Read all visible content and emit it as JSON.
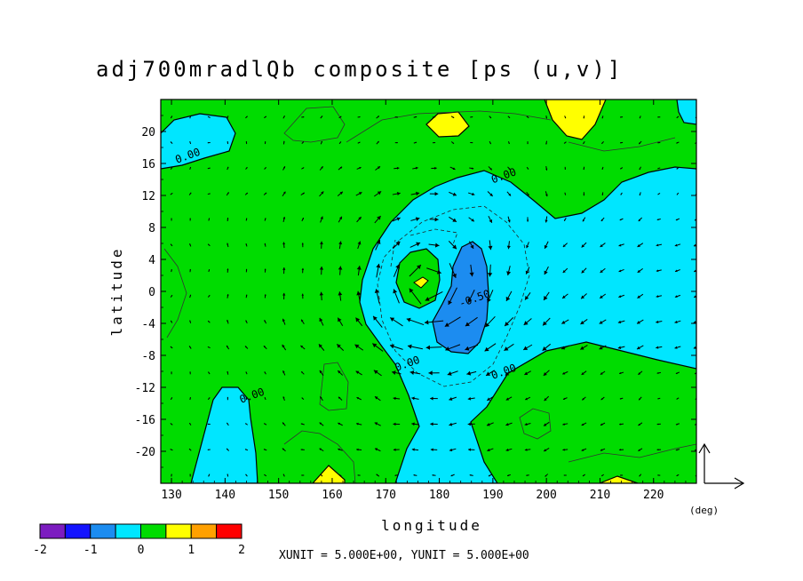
{
  "chart_data": {
    "type": "contour",
    "title": "adj700mradlQb composite [ps (u,v)]",
    "xlabel": "longitude",
    "ylabel": "latitude",
    "x_unit_label": "(deg)",
    "xlim": [
      128,
      228
    ],
    "ylim": [
      -24,
      24
    ],
    "x_ticks": [
      130,
      140,
      150,
      160,
      170,
      180,
      190,
      200,
      210,
      220
    ],
    "y_ticks": [
      20,
      16,
      12,
      8,
      4,
      0,
      -4,
      -8,
      -12,
      -16,
      -20
    ],
    "vector_units_text": "XUNIT = 5.000E+00, YUNIT = 5.000E+00",
    "contour_labels": [
      {
        "text": "0.00",
        "x": 131,
        "y": 16
      },
      {
        "text": "0.00",
        "x": 190,
        "y": 13.5
      },
      {
        "text": "0.00",
        "x": 172,
        "y": -10
      },
      {
        "text": "0.00",
        "x": 143,
        "y": -14
      },
      {
        "text": "0.00",
        "x": 190,
        "y": -11
      },
      {
        "text": "-0.50",
        "x": 184,
        "y": -2
      }
    ],
    "colorbar": {
      "ticks": [
        "-2",
        "-1",
        "0",
        "1",
        "2"
      ],
      "colors": [
        "#7c1cc0",
        "#1414ff",
        "#1c8cf0",
        "#00e6ff",
        "#00dc00",
        "#ffff00",
        "#ffa000",
        "#ff0000"
      ]
    }
  }
}
